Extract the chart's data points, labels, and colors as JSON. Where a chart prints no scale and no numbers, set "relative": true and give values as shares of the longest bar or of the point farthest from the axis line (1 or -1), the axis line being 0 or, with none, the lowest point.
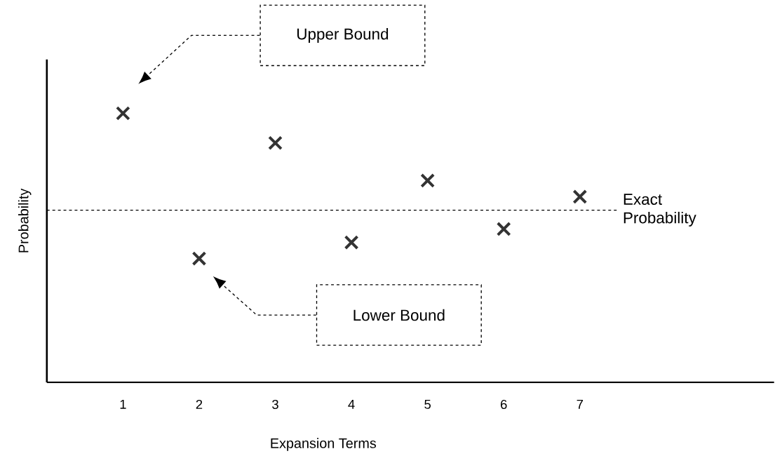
{
  "chart_data": {
    "type": "scatter",
    "xlabel": "Expansion Terms",
    "ylabel": "Probability",
    "relative": true,
    "x": [
      1,
      2,
      3,
      4,
      5,
      6,
      7
    ],
    "values": [
      1,
      0.46,
      0.89,
      0.52,
      0.75,
      0.57,
      0.69
    ],
    "color": "#333333",
    "marker": "cross",
    "xlim": [
      0,
      9.55
    ],
    "xticks": [
      1,
      2,
      3,
      4,
      5,
      6,
      7
    ],
    "ref_lines": [
      {
        "axis": "y",
        "value": 0.64,
        "label": "Exact Probability",
        "color": "#000000",
        "line_style": "dashed"
      }
    ],
    "annotations": [
      "Upper Bound",
      "Lower Bound"
    ]
  }
}
